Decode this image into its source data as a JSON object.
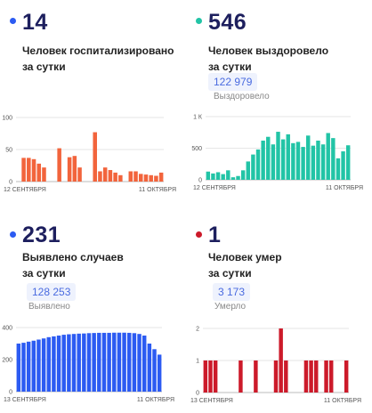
{
  "colors": {
    "hospitalized": "#f2643c",
    "recovered": "#22c4a6",
    "cases": "#2c5bf2",
    "deaths": "#cc1a2a",
    "headline": "#1d1f5e"
  },
  "panels": [
    {
      "id": "hospitalized",
      "count": "14",
      "description": "Человек госпитализировано\nза сутки",
      "total": "",
      "total_label": ""
    },
    {
      "id": "recovered",
      "count": "546",
      "description": "Человек выздоровело\nза сутки",
      "total": "122 979",
      "total_label": "Выздоровело"
    },
    {
      "id": "cases",
      "count": "231",
      "description": "Выявлено случаев\nза сутки",
      "total": "128 253",
      "total_label": "Выявлено"
    },
    {
      "id": "deaths",
      "count": "1",
      "description": "Человек умер\nза сутки",
      "total": "3 173",
      "total_label": "Умерло"
    }
  ],
  "chart_data": [
    {
      "type": "bar",
      "x_start_label": "12 СЕНТЯБРЯ",
      "x_end_label": "11 ОКТЯБРЯ",
      "ylim": [
        0,
        100
      ],
      "yticks": [
        "0",
        "50",
        "100"
      ],
      "values": [
        0,
        37,
        37,
        35,
        28,
        22,
        0,
        0,
        52,
        0,
        38,
        40,
        22,
        0,
        0,
        77,
        16,
        22,
        18,
        14,
        10,
        0,
        16,
        16,
        12,
        11,
        10,
        9,
        14
      ]
    },
    {
      "type": "bar",
      "x_start_label": "12 СЕНТЯБРЯ",
      "x_end_label": "11 ОКТЯБРЯ",
      "ylim": [
        0,
        1000
      ],
      "yticks": [
        "0",
        "500",
        "1 К"
      ],
      "values": [
        130,
        100,
        120,
        90,
        150,
        40,
        60,
        150,
        290,
        400,
        480,
        620,
        680,
        560,
        760,
        640,
        720,
        580,
        600,
        520,
        700,
        540,
        620,
        560,
        740,
        660,
        340,
        450,
        546
      ]
    },
    {
      "type": "bar",
      "x_start_label": "13 СЕНТЯБРЯ",
      "x_end_label": "11 ОКТЯБРЯ",
      "ylim": [
        0,
        400
      ],
      "yticks": [
        "0",
        "200",
        "400"
      ],
      "values": [
        300,
        305,
        312,
        318,
        325,
        332,
        340,
        345,
        350,
        355,
        358,
        360,
        362,
        363,
        365,
        366,
        367,
        367,
        367,
        368,
        368,
        368,
        367,
        365,
        360,
        350,
        300,
        265,
        231
      ]
    },
    {
      "type": "bar",
      "x_start_label": "13 СЕНТЯБРЯ",
      "x_end_label": "11 ОКТЯБРЯ",
      "ylim": [
        0,
        2
      ],
      "yticks": [
        "0",
        "1",
        "2"
      ],
      "values": [
        1,
        1,
        1,
        0,
        0,
        0,
        0,
        1,
        0,
        0,
        1,
        0,
        0,
        0,
        1,
        2,
        1,
        0,
        0,
        0,
        1,
        1,
        1,
        0,
        1,
        1,
        0,
        0,
        1
      ]
    }
  ]
}
